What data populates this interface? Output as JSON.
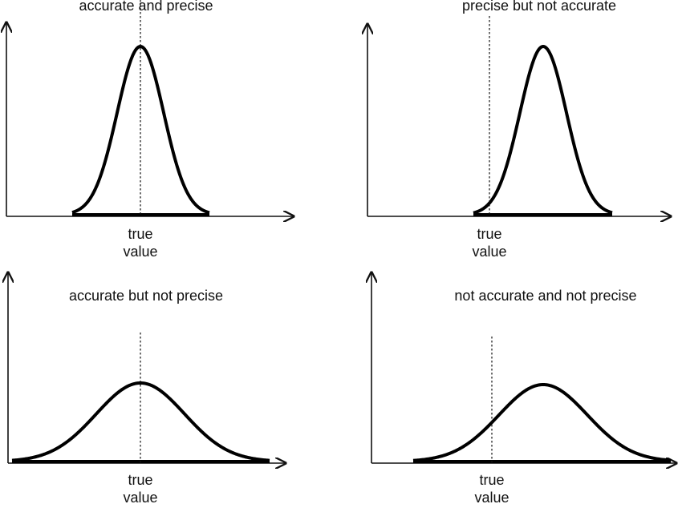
{
  "panels": [
    {
      "title": "accurate and precise",
      "marker_label": [
        "true",
        "value"
      ]
    },
    {
      "title": "precise but not accurate",
      "marker_label": [
        "true",
        "value"
      ]
    },
    {
      "title": "accurate but not precise",
      "marker_label": [
        "true",
        "value"
      ]
    },
    {
      "title": "not accurate and not precise",
      "marker_label": [
        "true",
        "value"
      ]
    }
  ]
}
